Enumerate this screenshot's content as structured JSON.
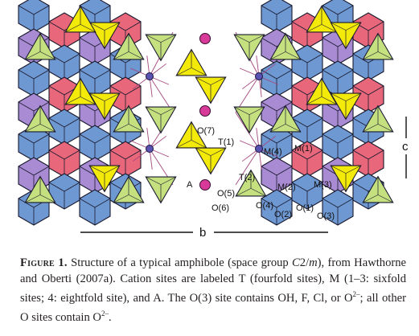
{
  "figure": {
    "site_labels": {
      "O7": "O(7)",
      "T1": "T(1)",
      "M4": "M(4)",
      "M1": "M(1)",
      "T2": "T(2)",
      "A": "A",
      "O5": "O(5)",
      "M2": "M(2)",
      "M3": "M(3)",
      "O6": "O(6)",
      "O4": "O(4)",
      "O1": "O(1)",
      "O2": "O(2)",
      "O3": "O(3)"
    },
    "axis_b": "b",
    "axis_c": "c",
    "colors": {
      "blue_octahedra": "#6e98d2",
      "red_octahedra": "#e8677a",
      "purple_octahedra": "#a98bd3",
      "yellow_tetrahedra": "#f4ea0a",
      "green_tetrahedra": "#c5e07f",
      "a_site_magenta": "#d83a9a",
      "m4_site_purple": "#5a52b0",
      "bonds": "#a4477e"
    }
  },
  "caption": {
    "label": "Figure 1.",
    "text_1": " Structure of a typical amphibole (space group ",
    "space_group": "C",
    "sg_2": "2/",
    "sg_m": "m",
    "text_2": "), from Hawthorne and Oberti (2007a). Cation sites are labeled T (fourfold sites), M (1–3: sixfold sites; 4: eightfold site), and A. The O(3) site contains OH, F, Cl, or O",
    "sup_1": "2–",
    "text_3": "; all other O sites contain O",
    "sup_2": "2–",
    "text_4": "."
  }
}
